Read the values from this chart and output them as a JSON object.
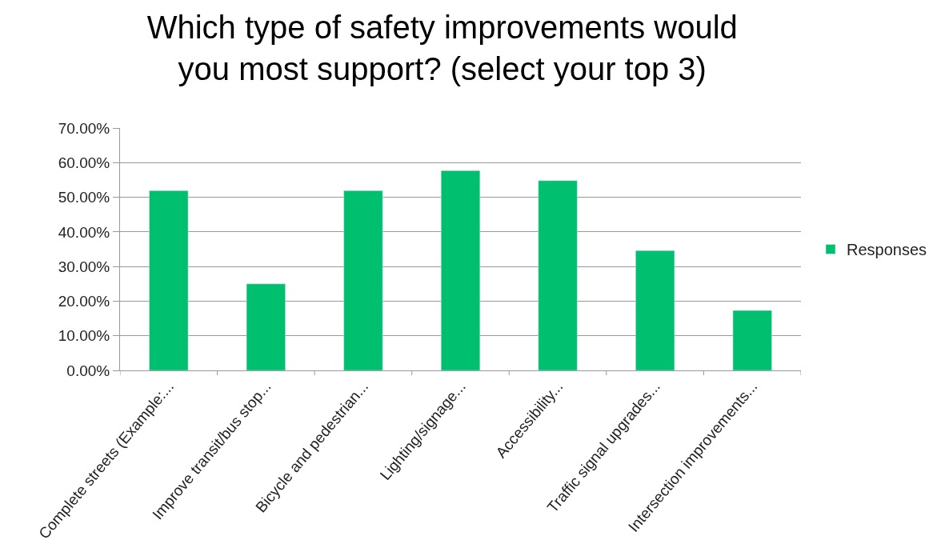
{
  "chart_data": {
    "type": "bar",
    "title": "Which type of safety improvements would\nyou most support? (select your top 3)",
    "categories": [
      "Complete streets (Example:...",
      "Improve transit/bus stop...",
      "Bicycle and pedestrian...",
      "Lighting/signage...",
      "Accessibility...",
      "Traffic signal upgrades...",
      "Intersection improvements..."
    ],
    "series": [
      {
        "name": "Responses",
        "color": "#00bf6f",
        "values": [
          51.9,
          25.0,
          51.9,
          57.7,
          54.8,
          34.6,
          17.3
        ]
      }
    ],
    "ylim": [
      0,
      70
    ],
    "yticks": [
      {
        "value": 0,
        "label": "0.00%"
      },
      {
        "value": 10,
        "label": "10.00%"
      },
      {
        "value": 20,
        "label": "20.00%"
      },
      {
        "value": 30,
        "label": "30.00%"
      },
      {
        "value": 40,
        "label": "40.00%"
      },
      {
        "value": 50,
        "label": "50.00%"
      },
      {
        "value": 60,
        "label": "60.00%"
      },
      {
        "value": 70,
        "label": "70.00%"
      }
    ],
    "grid": "y",
    "legend": "right"
  }
}
